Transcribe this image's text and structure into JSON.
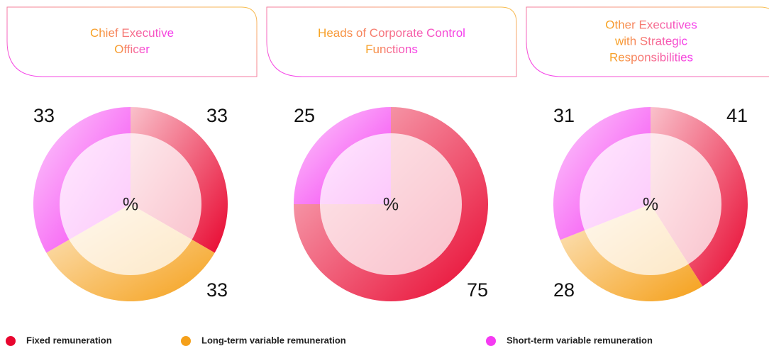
{
  "chart_data": [
    {
      "type": "pie",
      "title": [
        "Chief Executive",
        "Officer"
      ],
      "center_label": "%",
      "values": [
        33,
        33,
        33
      ]
    },
    {
      "type": "pie",
      "title": [
        "Heads of Corporate Control",
        "Functions"
      ],
      "center_label": "%",
      "values": [
        75,
        null,
        25
      ]
    },
    {
      "type": "pie",
      "title": [
        "Other Executives",
        "with Strategic",
        "Responsibilities"
      ],
      "center_label": "%",
      "values": [
        41,
        28,
        31
      ]
    }
  ],
  "legend": [
    {
      "name": "Fixed remuneration",
      "color": "#e8062f"
    },
    {
      "name": "Long-term variable remuneration",
      "color": "#f5a01a"
    },
    {
      "name": "Short-term variable remuneration",
      "color": "#f53bf2"
    }
  ]
}
